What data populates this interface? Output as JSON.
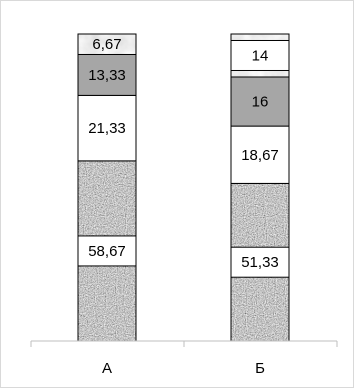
{
  "chart_data": {
    "type": "bar",
    "stacked": true,
    "categories": [
      "А",
      "Б"
    ],
    "series": [
      {
        "values": [
          58.67,
          51.33
        ],
        "labels": [
          "58,67",
          "51,33"
        ],
        "fill": "granite"
      },
      {
        "values": [
          21.33,
          18.67
        ],
        "labels": [
          "21,33",
          "18,67"
        ],
        "fill": "white"
      },
      {
        "values": [
          13.33,
          16
        ],
        "labels": [
          "13,33",
          "16"
        ],
        "fill": "#a6a6a6"
      },
      {
        "values": [
          6.67,
          14
        ],
        "labels": [
          "6,67",
          "14"
        ],
        "fill": "marble"
      }
    ],
    "ylim": [
      0,
      100
    ],
    "grid": false,
    "legend": "none",
    "title": "",
    "xlabel": "",
    "ylabel": ""
  }
}
